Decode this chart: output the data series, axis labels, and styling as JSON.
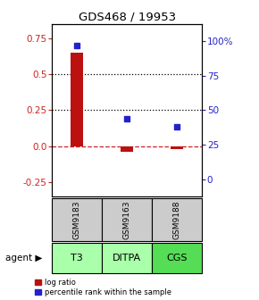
{
  "title": "GDS468 / 19953",
  "samples": [
    "GSM9183",
    "GSM9163",
    "GSM9188"
  ],
  "agents": [
    "T3",
    "DITPA",
    "CGS"
  ],
  "log_ratio": [
    0.65,
    -0.04,
    -0.02
  ],
  "percentile_rank": [
    97,
    44,
    38
  ],
  "ylim_left": [
    -0.35,
    0.85
  ],
  "ylim_right": [
    -12.5,
    112.5
  ],
  "yticks_left": [
    -0.25,
    0.0,
    0.25,
    0.5,
    0.75
  ],
  "yticks_right": [
    0,
    25,
    50,
    75,
    100
  ],
  "ytick_labels_right": [
    "0",
    "25",
    "50",
    "75",
    "100%"
  ],
  "hlines_dotted": [
    0.25,
    0.5
  ],
  "bar_color": "#bb1111",
  "dot_color": "#2222cc",
  "zero_line_color": "#cc2222",
  "agent_colors": [
    "#aaffaa",
    "#aaffaa",
    "#55dd55"
  ],
  "sample_bg": "#cccccc",
  "left_tick_color": "#cc2222",
  "right_tick_color": "#2222cc",
  "bar_width": 0.25,
  "dot_size": 5
}
